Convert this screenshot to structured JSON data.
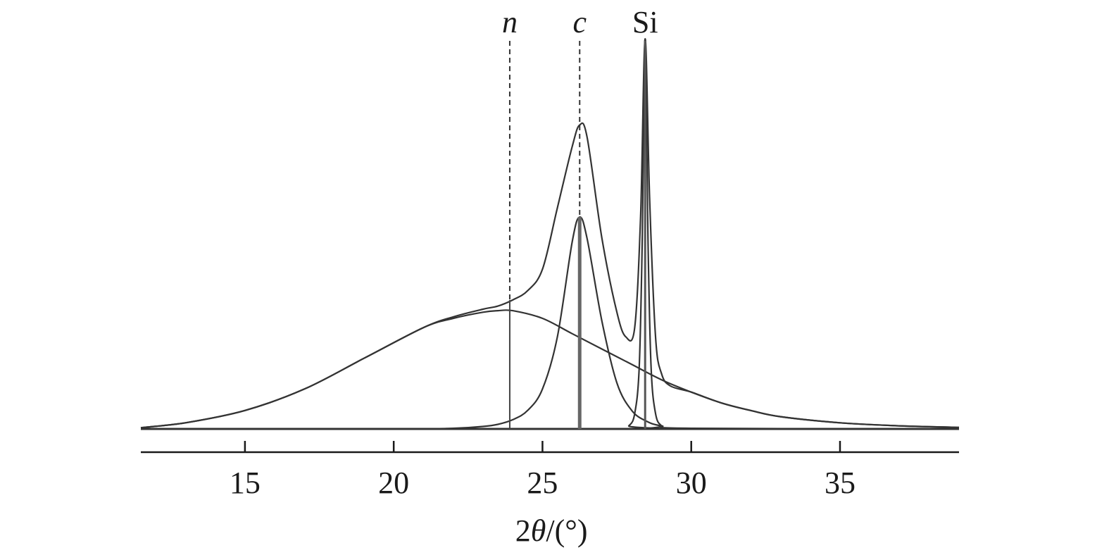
{
  "chart_data": {
    "type": "line",
    "xlabel_parts": [
      "2",
      "θ",
      "/(°)"
    ],
    "xlim": [
      11.5,
      39
    ],
    "xticks": [
      15,
      20,
      25,
      30,
      35
    ],
    "tick_labels": [
      "15",
      "20",
      "25",
      "30",
      "35"
    ],
    "y_axis_shown": false,
    "grid": false,
    "legend": "none",
    "markers": [
      {
        "label": "n",
        "italic": true,
        "x": 23.9,
        "style": "dashed"
      },
      {
        "label": "c",
        "italic": true,
        "x": 26.25,
        "style": "dashed"
      },
      {
        "label": "Si",
        "italic": false,
        "x": 28.45,
        "style": "solid"
      }
    ],
    "series": [
      {
        "role": "broad-component",
        "x": [
          11.5,
          13,
          15,
          17,
          19,
          21,
          22,
          23,
          23.5,
          24,
          25,
          26,
          27,
          28,
          29,
          30,
          31,
          32,
          33,
          35,
          37,
          39
        ],
        "y": [
          0.004,
          0.02,
          0.06,
          0.13,
          0.23,
          0.33,
          0.36,
          0.38,
          0.385,
          0.385,
          0.36,
          0.31,
          0.26,
          0.21,
          0.16,
          0.12,
          0.085,
          0.06,
          0.04,
          0.02,
          0.01,
          0.005
        ]
      },
      {
        "role": "c-component",
        "x": [
          11.5,
          20,
          22,
          23,
          23.5,
          24,
          24.5,
          25,
          25.5,
          26,
          26.25,
          26.5,
          27,
          27.5,
          28,
          28.5,
          29,
          30,
          39
        ],
        "y": [
          0,
          0,
          0.002,
          0.008,
          0.015,
          0.03,
          0.06,
          0.13,
          0.3,
          0.61,
          0.69,
          0.62,
          0.35,
          0.15,
          0.06,
          0.025,
          0.01,
          0.002,
          0
        ]
      },
      {
        "role": "si-component",
        "x": [
          11.5,
          27.6,
          27.9,
          28.1,
          28.25,
          28.35,
          28.45,
          28.55,
          28.65,
          28.8,
          29.0,
          29.3,
          39
        ],
        "y": [
          0,
          0,
          0.01,
          0.05,
          0.2,
          0.6,
          1.27,
          0.6,
          0.2,
          0.05,
          0.01,
          0,
          0
        ]
      },
      {
        "role": "total",
        "x": [
          11.5,
          13,
          15,
          17,
          19,
          21,
          22,
          23,
          23.5,
          24,
          24.5,
          25,
          25.5,
          26,
          26.25,
          26.5,
          27,
          27.5,
          27.8,
          28.1,
          28.3,
          28.45,
          28.6,
          28.8,
          29.0,
          29.3,
          30,
          31,
          32,
          33,
          35,
          37,
          39
        ],
        "y": [
          0.004,
          0.02,
          0.06,
          0.13,
          0.23,
          0.33,
          0.365,
          0.39,
          0.4,
          0.42,
          0.45,
          0.52,
          0.72,
          0.92,
          0.99,
          0.95,
          0.62,
          0.38,
          0.3,
          0.33,
          0.7,
          1.27,
          0.75,
          0.3,
          0.18,
          0.14,
          0.12,
          0.085,
          0.06,
          0.04,
          0.02,
          0.01,
          0.005
        ]
      }
    ]
  }
}
